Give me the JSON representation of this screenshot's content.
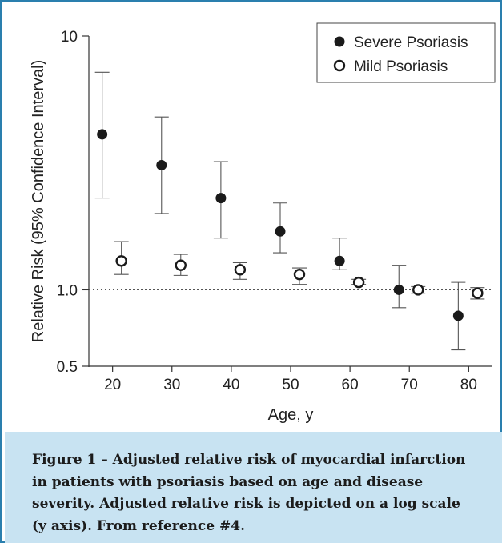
{
  "chart_data": {
    "type": "scatter",
    "xlabel": "Age, y",
    "ylabel": "Relative Risk (95% Confidence Interval)",
    "x_ticks": [
      "20",
      "30",
      "40",
      "50",
      "60",
      "70",
      "80"
    ],
    "y_ticks": [
      {
        "value": 10,
        "label": "10"
      },
      {
        "value": 1.0,
        "label": "1.0"
      },
      {
        "value": 0.5,
        "label": "0.5"
      }
    ],
    "xlim": [
      16,
      84
    ],
    "ylim": [
      0.5,
      10
    ],
    "y_scale": "log",
    "reference_line": {
      "y": 1.0,
      "style": "dotted"
    },
    "legend_position": "top-right",
    "series": [
      {
        "name": "Severe Psoriasis",
        "marker": "filled-circle",
        "x": [
          20,
          30,
          40,
          50,
          60,
          70,
          80
        ],
        "y": [
          4.1,
          3.1,
          2.3,
          1.7,
          1.3,
          1.0,
          0.79
        ],
        "lower": [
          2.3,
          2.0,
          1.6,
          1.4,
          1.2,
          0.85,
          0.58
        ],
        "upper": [
          7.2,
          4.8,
          3.2,
          2.2,
          1.6,
          1.25,
          1.07
        ]
      },
      {
        "name": "Mild Psoriasis",
        "marker": "open-circle",
        "x": [
          20,
          30,
          40,
          50,
          60,
          70,
          80
        ],
        "y": [
          1.3,
          1.25,
          1.2,
          1.15,
          1.07,
          1.0,
          0.97
        ],
        "lower": [
          1.15,
          1.14,
          1.1,
          1.05,
          1.05,
          0.97,
          0.92
        ],
        "upper": [
          1.55,
          1.38,
          1.28,
          1.22,
          1.1,
          1.03,
          1.02
        ]
      }
    ],
    "colors": {
      "marker": "#1a1a1a",
      "frame": "#2a7fae",
      "caption_bg": "#c8e3f2"
    }
  },
  "caption": "Figure 1 – Adjusted relative risk of myocardial infarction in patients with psoriasis based on age and disease severity. Adjusted relative risk is depicted on a log scale (y axis). From reference #4."
}
